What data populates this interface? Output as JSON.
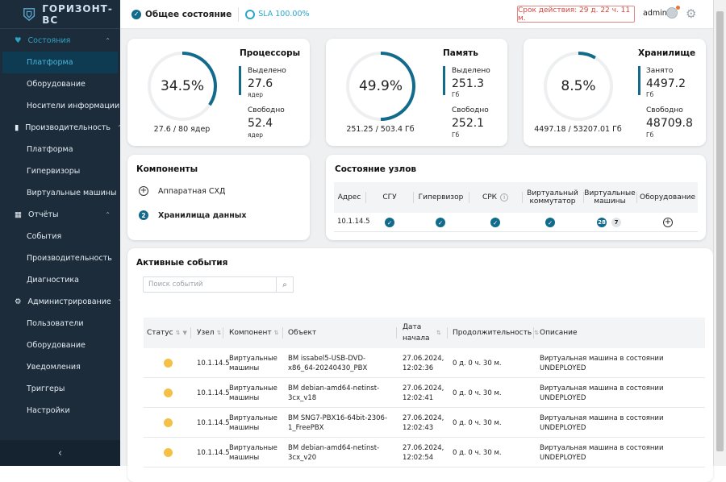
{
  "brand": {
    "name": "ГОРИЗОНТ-ВС"
  },
  "sidebar": {
    "sections": [
      {
        "label": "Состояния",
        "items": [
          "Платформа",
          "Оборудование",
          "Носители информации"
        ]
      },
      {
        "label": "Производительность",
        "items": [
          "Платформа",
          "Гипервизоры",
          "Виртуальные машины"
        ]
      },
      {
        "label": "Отчёты",
        "items": [
          "События",
          "Производительность",
          "Диагностика"
        ]
      },
      {
        "label": "Администрирование",
        "items": [
          "Пользователи",
          "Оборудование",
          "Уведомления",
          "Триггеры",
          "Настройки"
        ]
      }
    ],
    "collapse": "‹"
  },
  "topbar": {
    "overall": "Общее состояние",
    "sla": "SLA 100.00%",
    "expiry": "Срок действия: 29 д. 22 ч. 11 м.",
    "user": "admin"
  },
  "metrics": [
    {
      "title": "Процессоры",
      "pct": "34.5%",
      "fraction": 0.345,
      "summary": "27.6 / 80 ядер",
      "l1": "Выделено",
      "v1": "27.6",
      "u1": "ядер",
      "l2": "Свободно",
      "v2": "52.4",
      "u2": "ядер"
    },
    {
      "title": "Память",
      "pct": "49.9%",
      "fraction": 0.499,
      "summary": "251.25 / 503.4 Гб",
      "l1": "Выделено",
      "v1": "251.3",
      "u1": "Гб",
      "l2": "Свободно",
      "v2": "252.1",
      "u2": "Гб"
    },
    {
      "title": "Хранилище",
      "pct": "8.5%",
      "fraction": 0.085,
      "summary": "4497.18 / 53207.01 Гб",
      "l1": "Занято",
      "v1": "4497.2",
      "u1": "Гб",
      "l2": "Свободно",
      "v2": "48709.8",
      "u2": "Гб"
    }
  ],
  "components": {
    "title": "Компоненты",
    "items": [
      {
        "icon": "+",
        "label": "Аппаратная СХД"
      },
      {
        "icon": "2",
        "label": "Хранилища данных"
      }
    ]
  },
  "nodes": {
    "title": "Состояние узлов",
    "headers": [
      "Адрес",
      "СГУ",
      "Гипервизор",
      "СРК",
      "Виртуальный коммутатор",
      "Виртуальные машины",
      "Оборудование"
    ],
    "row": {
      "address": "10.1.14.5",
      "vm_count": "28",
      "vm_count2": "7"
    }
  },
  "events": {
    "title": "Активные события",
    "search_placeholder": "Поиск событий",
    "headers": [
      "Статус",
      "Узел",
      "Компонент",
      "Объект",
      "Дата начала",
      "Продолжительность",
      "Описание"
    ],
    "rows": [
      {
        "node": "10.1.14.5",
        "component": "Виртуальные машины",
        "object": "ВМ issabel5-USB-DVD-x86_64-20240430_PBX",
        "date": "27.06.2024, 12:02:36",
        "duration": "0 д. 0 ч. 30 м.",
        "desc": "Виртуальная машина в состоянии UNDEPLOYED"
      },
      {
        "node": "10.1.14.5",
        "component": "Виртуальные машины",
        "object": "ВМ debian-amd64-netinst-3cx_v18",
        "date": "27.06.2024, 12:02:41",
        "duration": "0 д. 0 ч. 30 м.",
        "desc": "Виртуальная машина в состоянии UNDEPLOYED"
      },
      {
        "node": "10.1.14.5",
        "component": "Виртуальные машины",
        "object": "ВМ SNG7-PBX16-64bit-2306-1_FreePBX",
        "date": "27.06.2024, 12:02:43",
        "duration": "0 д. 0 ч. 30 м.",
        "desc": "Виртуальная машина в состоянии UNDEPLOYED"
      },
      {
        "node": "10.1.14.5",
        "component": "Виртуальные машины",
        "object": "ВМ debian-amd64-netinst-3cx_v20",
        "date": "27.06.2024, 12:02:54",
        "duration": "0 д. 0 ч. 30 м.",
        "desc": "Виртуальная машина в состоянии UNDEPLOYED"
      }
    ]
  },
  "colors": {
    "accent": "#126b8a",
    "sidebar": "#1c2c3b",
    "warning": "#f4c046"
  }
}
